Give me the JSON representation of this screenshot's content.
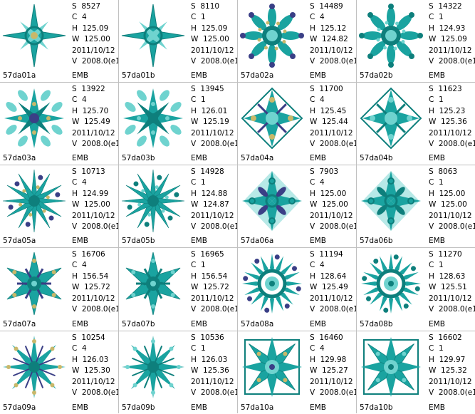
{
  "colors": {
    "teal": "#1aa3a0",
    "teal_dark": "#0e7f7c",
    "teal_light": "#6fd3cf",
    "navy": "#3a3f86",
    "gold": "#c9b86a",
    "grid_line": "#c0c0c0"
  },
  "cells": [
    {
      "name": "57da01a",
      "s": "S  8527",
      "c": "C  4",
      "h": "H  125.09",
      "w": "W  125.00",
      "date": "2011/10/12",
      "v": "V  2008.0(e1",
      "type": "EMB",
      "icon": "snowflake-star-icon"
    },
    {
      "name": "57da01b",
      "s": "S  8110",
      "c": "C  1",
      "h": "H  125.09",
      "w": "W  125.00",
      "date": "2011/10/12",
      "v": "V  2008.0(e1",
      "type": "EMB",
      "icon": "snowflake-star-icon"
    },
    {
      "name": "57da02a",
      "s": "S  14489",
      "c": "C  4",
      "h": "H  125.12",
      "w": "W  124.82",
      "date": "2011/10/12",
      "v": "V  2008.0(e1",
      "type": "EMB",
      "icon": "snowflake-round-icon"
    },
    {
      "name": "57da02b",
      "s": "S  14322",
      "c": "C  1",
      "h": "H  124.93",
      "w": "W  125.09",
      "date": "2011/10/12",
      "v": "V  2008.0(e1",
      "type": "EMB",
      "icon": "snowflake-round-icon"
    },
    {
      "name": "57da03a",
      "s": "S  13922",
      "c": "C  4",
      "h": "H  125.70",
      "w": "W  125.49",
      "date": "2011/10/12",
      "v": "V  2008.0(e1",
      "type": "EMB",
      "icon": "snowflake-cross-icon"
    },
    {
      "name": "57da03b",
      "s": "S  13945",
      "c": "C  1",
      "h": "H  126.01",
      "w": "W  125.19",
      "date": "2011/10/12",
      "v": "V  2008.0(e1",
      "type": "EMB",
      "icon": "snowflake-cross-icon"
    },
    {
      "name": "57da04a",
      "s": "S  11700",
      "c": "C  4",
      "h": "H  125.45",
      "w": "W  125.44",
      "date": "2011/10/12",
      "v": "V  2008.0(e1",
      "type": "EMB",
      "icon": "snowflake-diamond-icon"
    },
    {
      "name": "57da04b",
      "s": "S  11623",
      "c": "C  1",
      "h": "H  125.23",
      "w": "W  125.36",
      "date": "2011/10/12",
      "v": "V  2008.0(e1",
      "type": "EMB",
      "icon": "snowflake-diamond-icon"
    },
    {
      "name": "57da05a",
      "s": "S  10713",
      "c": "C  4",
      "h": "H  124.99",
      "w": "W  125.00",
      "date": "2011/10/12",
      "v": "V  2008.0(e1",
      "type": "EMB",
      "icon": "snowflake-spiky-icon"
    },
    {
      "name": "57da05b",
      "s": "S  14928",
      "c": "C  1",
      "h": "H  124.88",
      "w": "W  124.87",
      "date": "2011/10/12",
      "v": "V  2008.0(e1",
      "type": "EMB",
      "icon": "snowflake-spiky-icon"
    },
    {
      "name": "57da06a",
      "s": "S  7903",
      "c": "C  4",
      "h": "H  125.00",
      "w": "W  125.00",
      "date": "2011/10/12",
      "v": "V  2008.0(e1",
      "type": "EMB",
      "icon": "snowflake-rhombus-icon"
    },
    {
      "name": "57da06b",
      "s": "S  8063",
      "c": "C  1",
      "h": "H  125.00",
      "w": "W  125.00",
      "date": "2011/10/12",
      "v": "V  2008.0(e1",
      "type": "EMB",
      "icon": "snowflake-rhombus-icon"
    },
    {
      "name": "57da07a",
      "s": "S  16706",
      "c": "C  4",
      "h": "H  156.54",
      "w": "W  125.72",
      "date": "2011/10/12",
      "v": "V  2008.0(e1",
      "type": "EMB",
      "icon": "snowflake-wide-icon"
    },
    {
      "name": "57da07b",
      "s": "S  16965",
      "c": "C  1",
      "h": "H  156.54",
      "w": "W  125.72",
      "date": "2011/10/12",
      "v": "V  2008.0(e1",
      "type": "EMB",
      "icon": "snowflake-wide-icon"
    },
    {
      "name": "57da08a",
      "s": "S  11194",
      "c": "C  4",
      "h": "H  128.64",
      "w": "W  125.49",
      "date": "2011/10/12",
      "v": "V  2008.0(e1",
      "type": "EMB",
      "icon": "snowflake-ring-icon"
    },
    {
      "name": "57da08b",
      "s": "S  11270",
      "c": "C  1",
      "h": "H  128.63",
      "w": "W  125.51",
      "date": "2011/10/12",
      "v": "V  2008.0(e1",
      "type": "EMB",
      "icon": "snowflake-ring-icon"
    },
    {
      "name": "57da09a",
      "s": "S  10254",
      "c": "C  4",
      "h": "H  126.03",
      "w": "W  125.30",
      "date": "2011/10/12",
      "v": "V  2008.0(e1",
      "type": "EMB",
      "icon": "snowflake-burst-icon"
    },
    {
      "name": "57da09b",
      "s": "S  10536",
      "c": "C  1",
      "h": "H  126.03",
      "w": "W  125.36",
      "date": "2011/10/12",
      "v": "V  2008.0(e1",
      "type": "EMB",
      "icon": "snowflake-burst-icon"
    },
    {
      "name": "57da10a",
      "s": "S  16460",
      "c": "C  4",
      "h": "H  129.98",
      "w": "W  125.27",
      "date": "2011/10/12",
      "v": "V  2008.0(e1",
      "type": "EMB",
      "icon": "snowflake-square-icon"
    },
    {
      "name": "57da10b",
      "s": "S  16602",
      "c": "C  1",
      "h": "H  129.97",
      "w": "W  125.32",
      "date": "2011/10/12",
      "v": "V  2008.0(e1",
      "type": "EMB",
      "icon": "snowflake-square-icon"
    }
  ]
}
